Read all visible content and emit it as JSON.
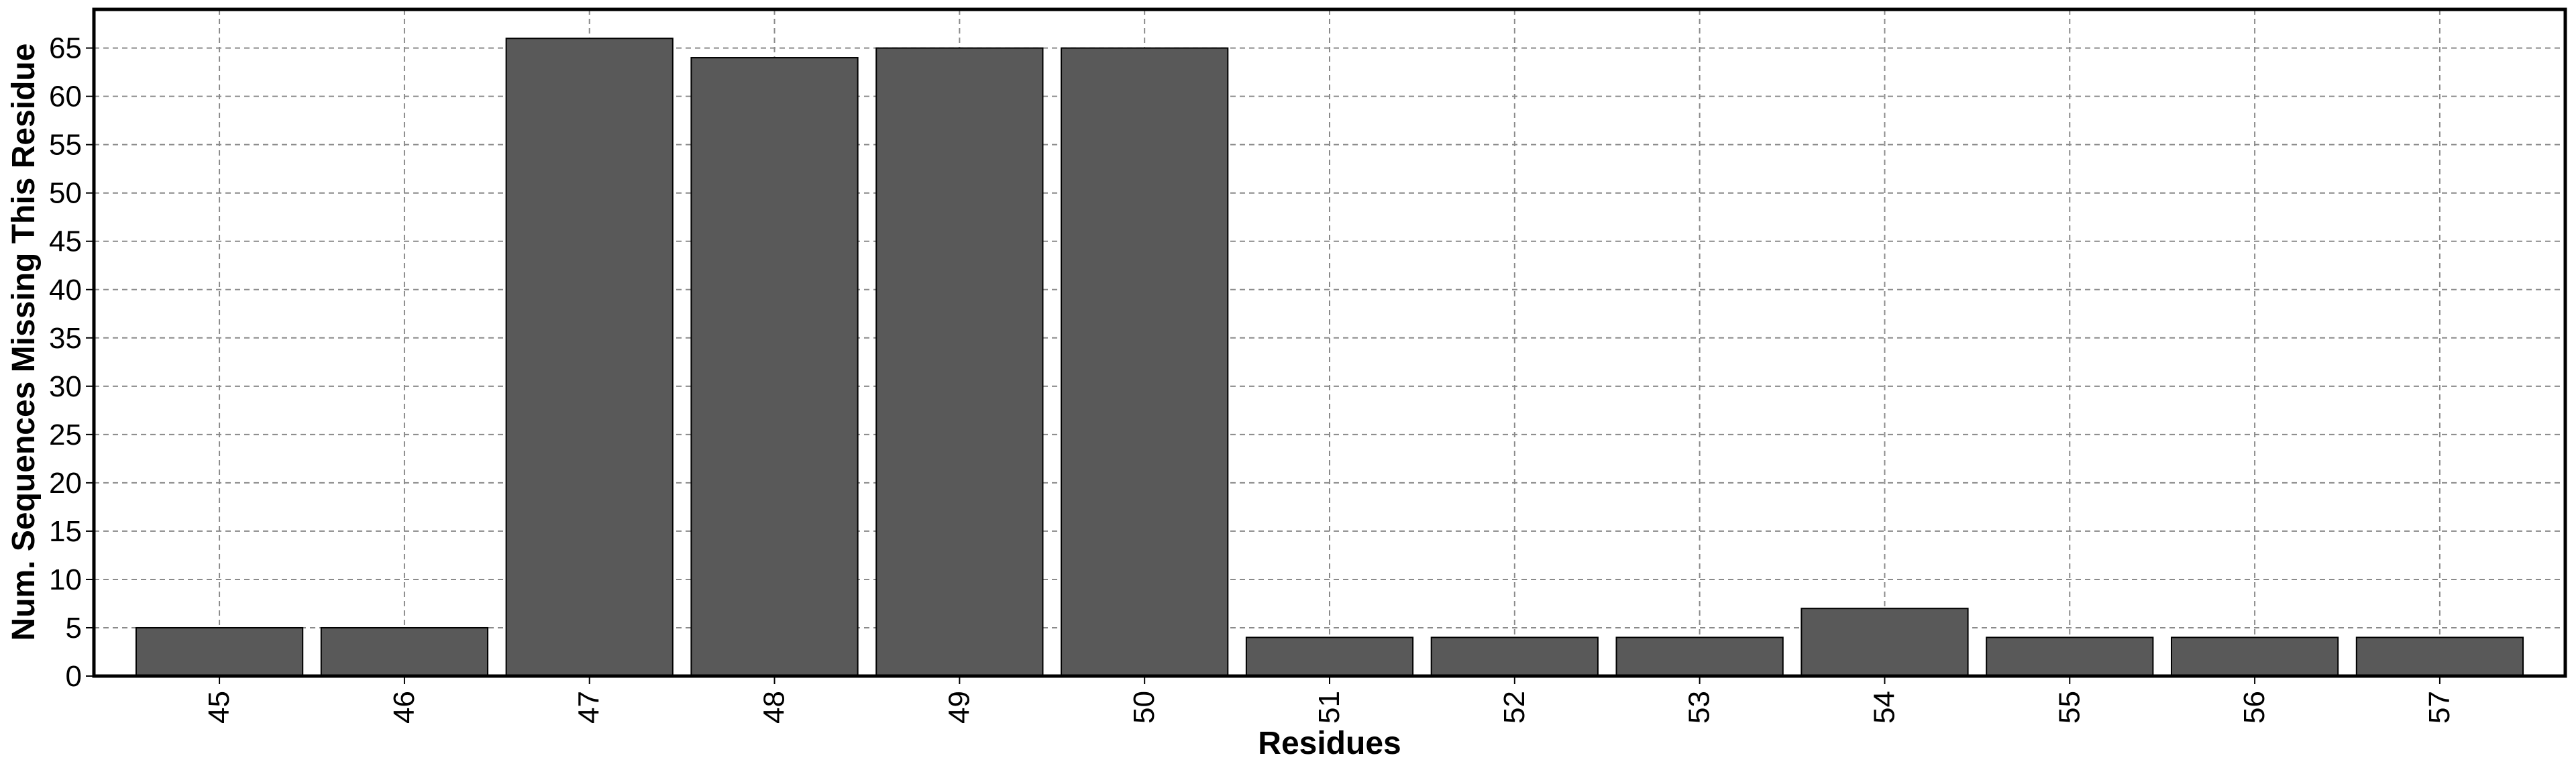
{
  "chart_data": {
    "type": "bar",
    "title": "",
    "xlabel": "Residues",
    "ylabel": "Num. Sequences Missing This Residue",
    "categories": [
      "45",
      "46",
      "47",
      "48",
      "49",
      "50",
      "51",
      "52",
      "53",
      "54",
      "55",
      "56",
      "57"
    ],
    "values": [
      5,
      5,
      66,
      64,
      65,
      65,
      4,
      4,
      4,
      7,
      4,
      4,
      4
    ],
    "ylim": [
      0,
      69
    ],
    "yticks": [
      0,
      5,
      10,
      15,
      20,
      25,
      30,
      35,
      40,
      45,
      50,
      55,
      60,
      65
    ],
    "grid": true,
    "legend": "none",
    "colors": {
      "bar_fill": "#595959",
      "bar_stroke": "#000000",
      "grid": "#8a8a8a",
      "axis": "#000000",
      "background": "#ffffff"
    }
  }
}
